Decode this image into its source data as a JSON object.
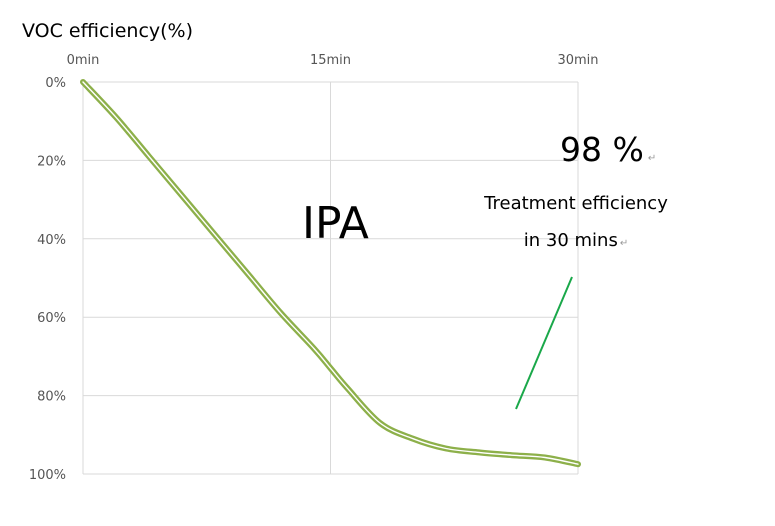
{
  "chart_data": {
    "type": "line",
    "ylabel": "VOC efficiency(%)",
    "x_ticks": [
      "0min",
      "15min",
      "30min"
    ],
    "y_ticks": [
      "0%",
      "20%",
      "40%",
      "60%",
      "80%",
      "100%"
    ],
    "xlim": [
      0,
      30
    ],
    "ylim": [
      0,
      100
    ],
    "y_inverted": true,
    "x_axis_position": "top",
    "grid": true,
    "series": [
      {
        "color": "#8db04a",
        "x": [
          0,
          2,
          4,
          6,
          8,
          10,
          12,
          14,
          15,
          16,
          18,
          20,
          22,
          24,
          26,
          28,
          30
        ],
        "values": [
          0,
          9,
          19,
          29,
          39,
          49,
          59,
          68,
          73,
          78,
          87,
          91,
          93.5,
          94.5,
          95.2,
          95.8,
          97.5
        ]
      }
    ],
    "annotations": {
      "curve_label": "IPA",
      "efficiency_value": "98 %",
      "efficiency_text_line1": "Treatment efficiency",
      "efficiency_text_line2": "in 30 mins",
      "pointer_color": "#1aa84a"
    }
  }
}
